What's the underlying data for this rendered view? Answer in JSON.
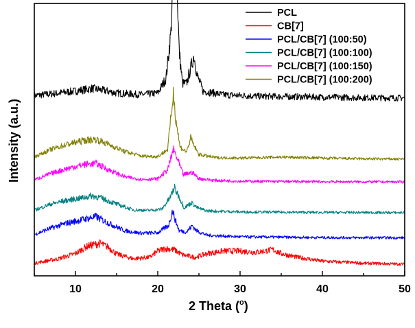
{
  "chart_data": {
    "type": "line",
    "title": "",
    "xlabel": "2 Theta (",
    "xlabel_degree": "o",
    "xlabel_close": ")",
    "ylabel": "Intensity (a.u.)",
    "xlim": [
      5,
      50
    ],
    "ylim": [
      0,
      1
    ],
    "x_ticks": [
      10,
      20,
      30,
      40,
      50
    ],
    "x_tick_labels": [
      "10",
      "20",
      "30",
      "40",
      "50"
    ],
    "y_ticks_shown": false,
    "grid": false,
    "legend_position": "top-right",
    "series": [
      {
        "name": "PCL",
        "color": "#000000",
        "baseline": 0.6,
        "points": [
          [
            5,
            0.072
          ],
          [
            8,
            0.082
          ],
          [
            10,
            0.09
          ],
          [
            12,
            0.1
          ],
          [
            13,
            0.095
          ],
          [
            15,
            0.082
          ],
          [
            18,
            0.076
          ],
          [
            20,
            0.082
          ],
          [
            21,
            0.14
          ],
          [
            21.6,
            0.32
          ],
          [
            21.9,
            0.58
          ],
          [
            22.1,
            0.69
          ],
          [
            22.3,
            0.55
          ],
          [
            22.6,
            0.25
          ],
          [
            23,
            0.12
          ],
          [
            23.5,
            0.12
          ],
          [
            24,
            0.18
          ],
          [
            24.4,
            0.23
          ],
          [
            24.8,
            0.15
          ],
          [
            25.5,
            0.09
          ],
          [
            28,
            0.075
          ],
          [
            30,
            0.073
          ],
          [
            32,
            0.07
          ],
          [
            36,
            0.068
          ],
          [
            40,
            0.066
          ],
          [
            45,
            0.064
          ],
          [
            50,
            0.063
          ]
        ]
      },
      {
        "name": "CB[7]",
        "color": "#ff0000",
        "baseline": 0.0,
        "points": [
          [
            5,
            0.012
          ],
          [
            8,
            0.03
          ],
          [
            10,
            0.05
          ],
          [
            11.5,
            0.08
          ],
          [
            13,
            0.09
          ],
          [
            14,
            0.075
          ],
          [
            15,
            0.048
          ],
          [
            17,
            0.03
          ],
          [
            19,
            0.035
          ],
          [
            20,
            0.06
          ],
          [
            21,
            0.07
          ],
          [
            22,
            0.065
          ],
          [
            23,
            0.045
          ],
          [
            24.5,
            0.035
          ],
          [
            26,
            0.05
          ],
          [
            28,
            0.06
          ],
          [
            30,
            0.06
          ],
          [
            32,
            0.055
          ],
          [
            34,
            0.065
          ],
          [
            35,
            0.05
          ],
          [
            37,
            0.035
          ],
          [
            40,
            0.02
          ],
          [
            45,
            0.012
          ],
          [
            50,
            0.008
          ]
        ]
      },
      {
        "name": "PCL/CB[7] (100:50)",
        "color": "#0000ff",
        "baseline": 0.11,
        "points": [
          [
            5,
            0.015
          ],
          [
            7,
            0.04
          ],
          [
            9,
            0.06
          ],
          [
            11,
            0.075
          ],
          [
            12.5,
            0.085
          ],
          [
            14,
            0.06
          ],
          [
            16,
            0.03
          ],
          [
            18,
            0.02
          ],
          [
            20,
            0.022
          ],
          [
            21.3,
            0.05
          ],
          [
            21.8,
            0.11
          ],
          [
            22.1,
            0.075
          ],
          [
            22.6,
            0.03
          ],
          [
            23.5,
            0.025
          ],
          [
            24.2,
            0.05
          ],
          [
            24.7,
            0.03
          ],
          [
            26,
            0.012
          ],
          [
            30,
            0.006
          ],
          [
            40,
            0.003
          ],
          [
            50,
            0.002
          ]
        ]
      },
      {
        "name": "PCL/CB[7] (100:100)",
        "color": "#008080",
        "baseline": 0.21,
        "points": [
          [
            5,
            0.01
          ],
          [
            7,
            0.035
          ],
          [
            9,
            0.05
          ],
          [
            11,
            0.06
          ],
          [
            12,
            0.068
          ],
          [
            13,
            0.06
          ],
          [
            15,
            0.035
          ],
          [
            17,
            0.012
          ],
          [
            19,
            0.01
          ],
          [
            20.5,
            0.015
          ],
          [
            21.5,
            0.06
          ],
          [
            22,
            0.1
          ],
          [
            22.5,
            0.07
          ],
          [
            23.2,
            0.02
          ],
          [
            24.1,
            0.04
          ],
          [
            24.8,
            0.02
          ],
          [
            26,
            0.008
          ],
          [
            30,
            0.004
          ],
          [
            40,
            0.002
          ],
          [
            50,
            0.001
          ]
        ]
      },
      {
        "name": "PCL/CB[7] (100:150)",
        "color": "#ff00ff",
        "baseline": 0.33,
        "points": [
          [
            5,
            0.01
          ],
          [
            7,
            0.035
          ],
          [
            9,
            0.055
          ],
          [
            11,
            0.07
          ],
          [
            12.5,
            0.075
          ],
          [
            14,
            0.05
          ],
          [
            16,
            0.022
          ],
          [
            18,
            0.012
          ],
          [
            20,
            0.014
          ],
          [
            21.2,
            0.05
          ],
          [
            21.9,
            0.13
          ],
          [
            22.4,
            0.09
          ],
          [
            23.1,
            0.03
          ],
          [
            24.2,
            0.04
          ],
          [
            25,
            0.015
          ],
          [
            27,
            0.008
          ],
          [
            30,
            0.005
          ],
          [
            40,
            0.003
          ],
          [
            50,
            0.002
          ]
        ]
      },
      {
        "name": "PCL/CB[7] (100:200)",
        "color": "#808000",
        "baseline": 0.42,
        "points": [
          [
            5,
            0.01
          ],
          [
            7,
            0.04
          ],
          [
            9,
            0.06
          ],
          [
            11,
            0.075
          ],
          [
            12.5,
            0.08
          ],
          [
            14,
            0.06
          ],
          [
            16,
            0.032
          ],
          [
            18,
            0.014
          ],
          [
            20,
            0.012
          ],
          [
            21.2,
            0.04
          ],
          [
            21.7,
            0.2
          ],
          [
            21.9,
            0.26
          ],
          [
            22.2,
            0.16
          ],
          [
            22.7,
            0.05
          ],
          [
            23.5,
            0.03
          ],
          [
            24,
            0.085
          ],
          [
            24.4,
            0.055
          ],
          [
            25,
            0.02
          ],
          [
            27,
            0.008
          ],
          [
            30,
            0.006
          ],
          [
            35,
            0.01
          ],
          [
            40,
            0.006
          ],
          [
            45,
            0.003
          ],
          [
            50,
            0.002
          ]
        ]
      }
    ]
  }
}
